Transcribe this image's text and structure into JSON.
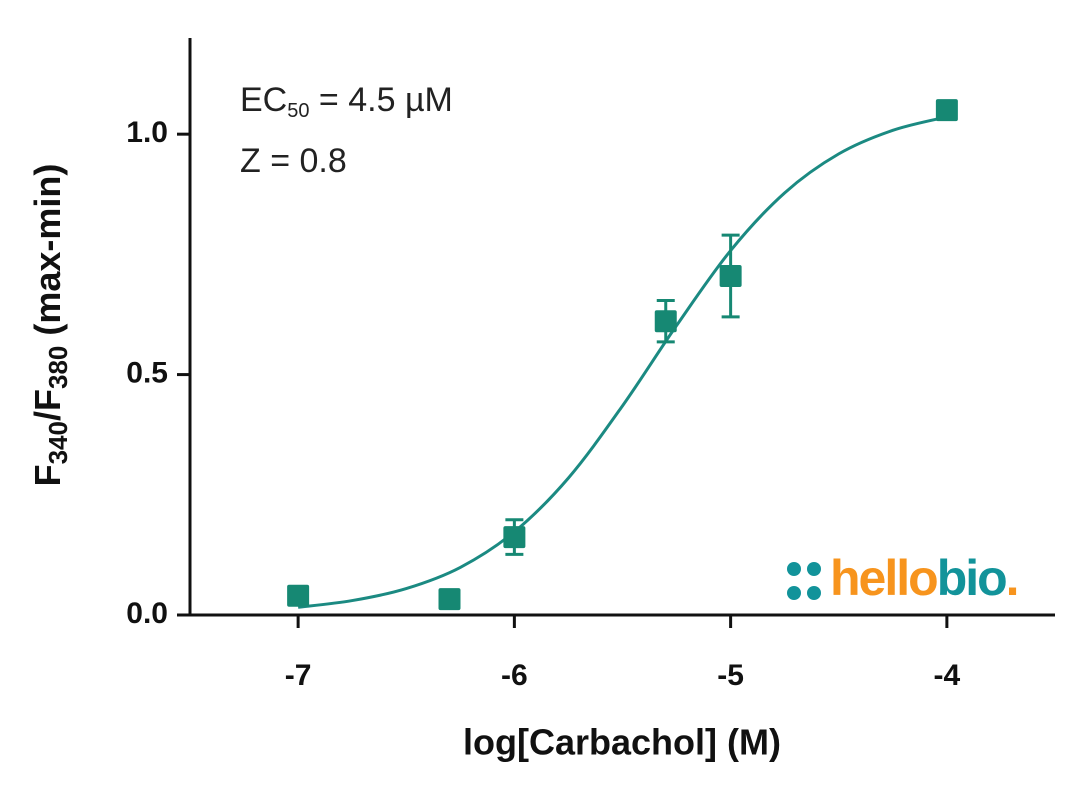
{
  "chart_data": {
    "type": "scatter",
    "annotations": [
      {
        "text": "EC",
        "sub": "50",
        "after": " = 4.5 µM"
      },
      {
        "text": "Z = 0.8"
      }
    ],
    "x_label": "log[Carbachol] (M)",
    "y_label": {
      "parts": [
        "F",
        "340",
        "/F",
        "380",
        " (max-min)"
      ]
    },
    "xlim": [
      -7.5,
      -3.5
    ],
    "ylim": [
      0,
      1.2
    ],
    "xticks": [
      -7,
      -6,
      -5,
      -4
    ],
    "yticks": [
      {
        "value": 0,
        "label": "0.0"
      },
      {
        "value": 0.5,
        "label": "0.5"
      },
      {
        "value": 1,
        "label": "1.0"
      }
    ],
    "series": [
      {
        "kind": "points",
        "color": "#168873",
        "x": [
          -7,
          -6.3,
          -6,
          -5.3,
          -5,
          -4
        ],
        "values": [
          0.04,
          0.033,
          0.162,
          0.611,
          0.705,
          1.05
        ],
        "errors": [
          0.01,
          0.01,
          0.036,
          0.043,
          0.085,
          0.01
        ]
      },
      {
        "kind": "curve",
        "color": "#1b8a82",
        "x": [
          -7,
          -6.75,
          -6.5,
          -6.25,
          -6,
          -5.75,
          -5.5,
          -5.25,
          -5,
          -4.75,
          -4.5,
          -4.25,
          -4
        ],
        "values": [
          0.016,
          0.03,
          0.055,
          0.099,
          0.173,
          0.285,
          0.435,
          0.602,
          0.758,
          0.878,
          0.959,
          1.008,
          1.036
        ]
      }
    ],
    "logo": {
      "parts": [
        "hello",
        "bio",
        "."
      ],
      "colors": [
        "#f7941d",
        "#12939a",
        "#f7941d"
      ]
    }
  }
}
